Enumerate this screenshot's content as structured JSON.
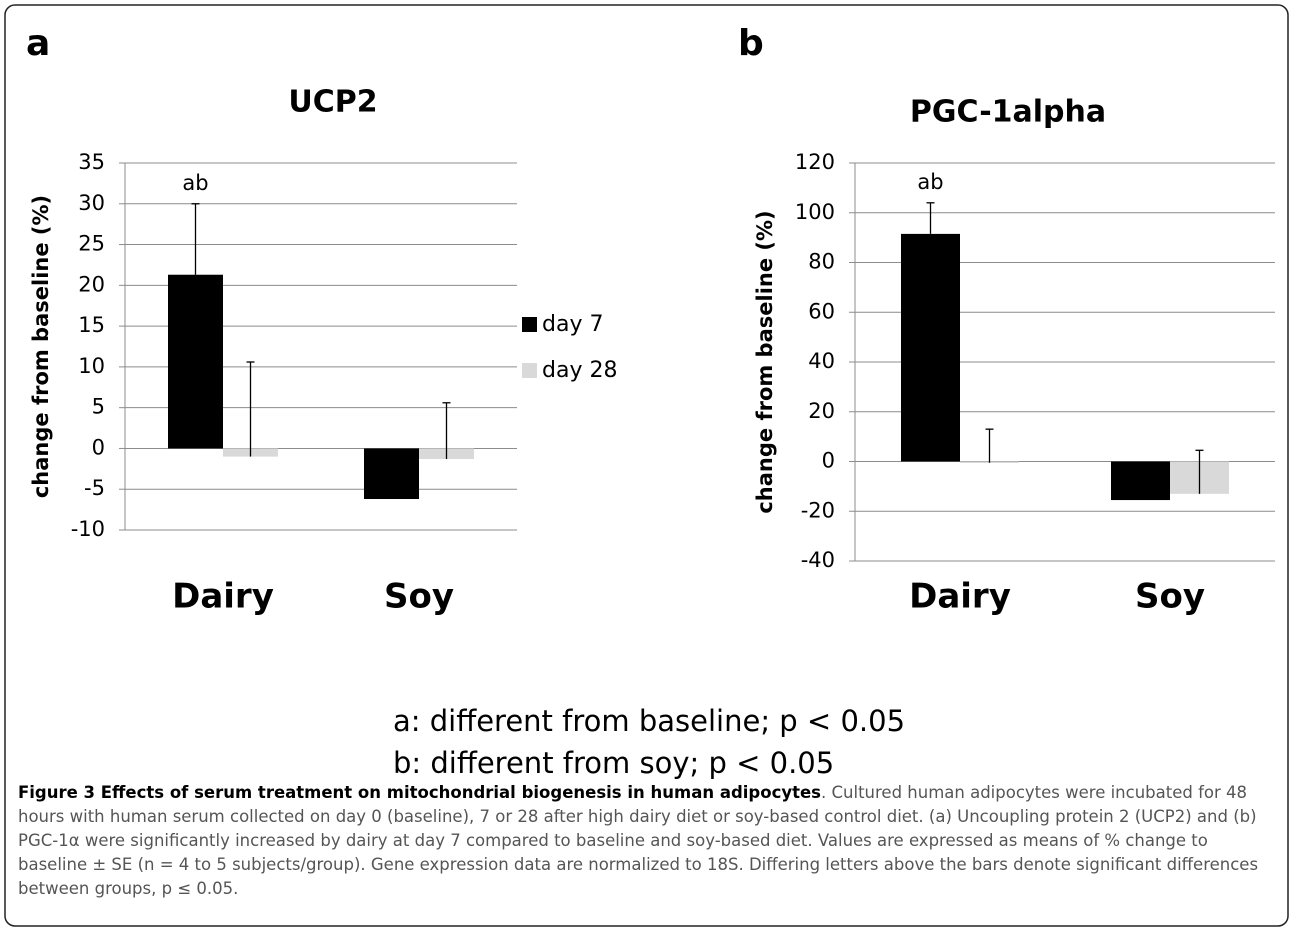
{
  "panel_labels": [
    "a",
    "b"
  ],
  "notes": [
    "a: different from baseline; p < 0.05",
    "b: different from soy; p < 0.05"
  ],
  "caption": {
    "title": "Figure 3 Effects of serum treatment on mitochondrial biogenesis in human adipocytes",
    "text": ". Cultured human adipocytes were incubated for 48 hours with human serum collected on day 0 (baseline), 7 or 28 after high dairy diet or soy-based control diet. (a) Uncoupling protein 2 (UCP2) and (b) PGC-1α were significantly increased by dairy at day 7 compared to baseline and soy-based diet. Values are expressed as means of % change to baseline ± SE (n = 4 to 5 subjects/group). Gene expression data are normalized to 18S. Differing letters above the bars denote significant differences between groups, p ≤ 0.05."
  },
  "chart_data": [
    {
      "type": "bar",
      "title": "UCP2",
      "y_label": "change from baseline (%)",
      "categories": [
        "Dairy",
        "Soy"
      ],
      "series": [
        {
          "name": "day 7",
          "color": "#000000",
          "values": [
            21.3,
            -6.2
          ],
          "errors": [
            8.7,
            null
          ]
        },
        {
          "name": "day 28",
          "color": "#d9d9d9",
          "values": [
            -1.0,
            -1.3
          ],
          "errors": [
            11.6,
            6.9
          ]
        }
      ],
      "annotations": [
        {
          "text": "ab",
          "category": 0,
          "series": 0
        }
      ],
      "ylim": [
        -10,
        35
      ],
      "yticks": [
        -10,
        -5,
        0,
        5,
        10,
        15,
        20,
        25,
        30,
        35
      ],
      "grid": true,
      "legend": "right"
    },
    {
      "type": "bar",
      "title": "PGC-1alpha",
      "y_label": "change from baseline (%)",
      "categories": [
        "Dairy",
        "Soy"
      ],
      "series": [
        {
          "color": "#000000",
          "values": [
            91.5,
            -15.5
          ],
          "errors": [
            12.5,
            null
          ]
        },
        {
          "color": "#d9d9d9",
          "values": [
            -0.5,
            -13.0
          ],
          "errors": [
            13.5,
            17.5
          ]
        }
      ],
      "annotations": [
        {
          "text": "ab",
          "category": 0,
          "series": 0
        }
      ],
      "ylim": [
        -40,
        120
      ],
      "yticks": [
        -40,
        -20,
        0,
        20,
        40,
        60,
        80,
        100,
        120
      ],
      "grid": true
    }
  ]
}
